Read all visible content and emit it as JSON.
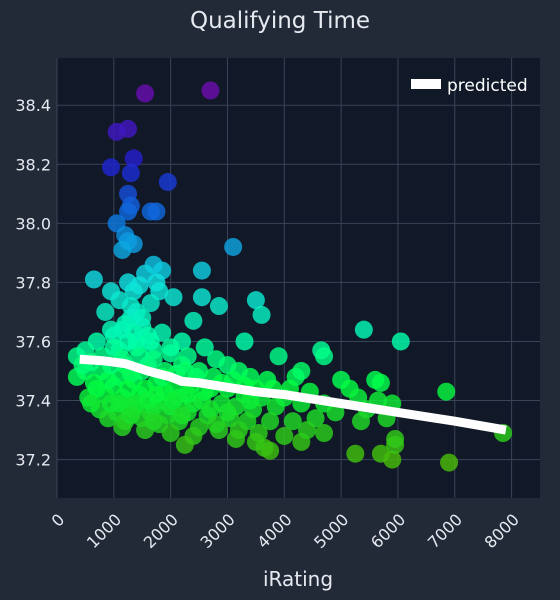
{
  "chart_data": {
    "type": "scatter",
    "title": "Qualifying Time",
    "xlabel": "iRating",
    "ylabel": "",
    "xlim": [
      0,
      8500
    ],
    "ylim": [
      37.07,
      38.56
    ],
    "x_ticks": [
      0,
      1000,
      2000,
      3000,
      4000,
      5000,
      6000,
      7000,
      8000
    ],
    "y_ticks": [
      37.2,
      37.4,
      37.6,
      37.8,
      38.0,
      38.2,
      38.4
    ],
    "y_tick_labels": [
      "37.2",
      "37.4",
      "37.6",
      "37.8",
      "38.0",
      "38.2",
      "38.4"
    ],
    "legend": {
      "placement": "top-right",
      "entries": [
        "predicted"
      ]
    },
    "grid": true,
    "colors": {
      "plot_bg": "#111827",
      "page_bg": "#222a38",
      "predicted_line": "#ffffff",
      "color_scale": [
        "#6a0dad",
        "#1f1fd0",
        "#0c7ae0",
        "#10e0e0",
        "#00ff44",
        "#20d020",
        "#55b000"
      ]
    },
    "series": [
      {
        "name": "predicted",
        "kind": "line",
        "x": [
          400,
          800,
          1200,
          1600,
          2000,
          2200,
          2500,
          3000,
          3500,
          4000,
          5000,
          6000,
          7000,
          7900
        ],
        "y": [
          37.54,
          37.535,
          37.525,
          37.5,
          37.48,
          37.465,
          37.46,
          37.445,
          37.43,
          37.42,
          37.39,
          37.36,
          37.33,
          37.3
        ]
      },
      {
        "kind": "points",
        "points": [
          [
            1550,
            38.44
          ],
          [
            2700,
            38.45
          ],
          [
            1250,
            38.32
          ],
          [
            1050,
            38.31
          ],
          [
            1350,
            38.22
          ],
          [
            950,
            38.19
          ],
          [
            1300,
            38.17
          ],
          [
            1950,
            38.14
          ],
          [
            1250,
            38.1
          ],
          [
            1300,
            38.06
          ],
          [
            1250,
            38.04
          ],
          [
            1650,
            38.04
          ],
          [
            1750,
            38.04
          ],
          [
            1050,
            38.0
          ],
          [
            1200,
            37.96
          ],
          [
            1250,
            37.94
          ],
          [
            1350,
            37.93
          ],
          [
            3100,
            37.92
          ],
          [
            1150,
            37.91
          ],
          [
            1700,
            37.86
          ],
          [
            2550,
            37.84
          ],
          [
            1550,
            37.83
          ],
          [
            1850,
            37.84
          ],
          [
            650,
            37.81
          ],
          [
            1750,
            37.8
          ],
          [
            1250,
            37.8
          ],
          [
            1450,
            37.79
          ],
          [
            1350,
            37.77
          ],
          [
            950,
            37.77
          ],
          [
            1800,
            37.77
          ],
          [
            2050,
            37.75
          ],
          [
            2550,
            37.75
          ],
          [
            3500,
            37.74
          ],
          [
            1100,
            37.74
          ],
          [
            1650,
            37.73
          ],
          [
            2850,
            37.72
          ],
          [
            850,
            37.7
          ],
          [
            3600,
            37.69
          ],
          [
            1300,
            37.68
          ],
          [
            1400,
            37.7
          ],
          [
            2400,
            37.67
          ],
          [
            5400,
            37.64
          ],
          [
            6050,
            37.6
          ],
          [
            3300,
            37.6
          ],
          [
            700,
            37.6
          ],
          [
            1000,
            37.62
          ],
          [
            1500,
            37.65
          ],
          [
            1850,
            37.63
          ],
          [
            2200,
            37.6
          ],
          [
            2600,
            37.58
          ],
          [
            4650,
            37.57
          ],
          [
            4700,
            37.55
          ],
          [
            350,
            37.55
          ],
          [
            500,
            37.57
          ],
          [
            800,
            37.55
          ],
          [
            1100,
            37.57
          ],
          [
            1400,
            37.58
          ],
          [
            1700,
            37.57
          ],
          [
            2000,
            37.56
          ],
          [
            2300,
            37.55
          ],
          [
            2800,
            37.54
          ],
          [
            3000,
            37.52
          ],
          [
            3200,
            37.5
          ],
          [
            3900,
            37.55
          ],
          [
            500,
            37.5
          ],
          [
            800,
            37.5
          ],
          [
            1200,
            37.52
          ],
          [
            1600,
            37.52
          ],
          [
            1900,
            37.5
          ],
          [
            2100,
            37.49
          ],
          [
            2450,
            37.48
          ],
          [
            3400,
            37.48
          ],
          [
            3700,
            37.47
          ],
          [
            4200,
            37.48
          ],
          [
            4300,
            37.5
          ],
          [
            5000,
            37.47
          ],
          [
            5600,
            37.47
          ],
          [
            5700,
            37.46
          ],
          [
            350,
            37.48
          ],
          [
            650,
            37.46
          ],
          [
            1000,
            37.45
          ],
          [
            1350,
            37.47
          ],
          [
            1750,
            37.46
          ],
          [
            2050,
            37.44
          ],
          [
            2350,
            37.45
          ],
          [
            2700,
            37.44
          ],
          [
            3000,
            37.44
          ],
          [
            3300,
            37.42
          ],
          [
            3600,
            37.41
          ],
          [
            4100,
            37.44
          ],
          [
            4450,
            37.43
          ],
          [
            5150,
            37.44
          ],
          [
            5300,
            37.41
          ],
          [
            5650,
            37.4
          ],
          [
            6850,
            37.43
          ],
          [
            550,
            37.41
          ],
          [
            850,
            37.42
          ],
          [
            1150,
            37.41
          ],
          [
            1450,
            37.42
          ],
          [
            1800,
            37.4
          ],
          [
            2150,
            37.41
          ],
          [
            2550,
            37.4
          ],
          [
            2900,
            37.39
          ],
          [
            3150,
            37.38
          ],
          [
            3450,
            37.37
          ],
          [
            3850,
            37.38
          ],
          [
            4300,
            37.39
          ],
          [
            4700,
            37.39
          ],
          [
            5450,
            37.37
          ],
          [
            5900,
            37.39
          ],
          [
            750,
            37.37
          ],
          [
            1050,
            37.36
          ],
          [
            1350,
            37.37
          ],
          [
            1650,
            37.36
          ],
          [
            1950,
            37.35
          ],
          [
            2300,
            37.36
          ],
          [
            2650,
            37.35
          ],
          [
            3050,
            37.34
          ],
          [
            3350,
            37.33
          ],
          [
            3750,
            37.33
          ],
          [
            4150,
            37.33
          ],
          [
            4550,
            37.34
          ],
          [
            5350,
            37.33
          ],
          [
            5800,
            37.34
          ],
          [
            900,
            37.34
          ],
          [
            1200,
            37.33
          ],
          [
            1500,
            37.34
          ],
          [
            1800,
            37.32
          ],
          [
            2150,
            37.33
          ],
          [
            2500,
            37.31
          ],
          [
            2850,
            37.3
          ],
          [
            3200,
            37.3
          ],
          [
            3550,
            37.29
          ],
          [
            4000,
            37.28
          ],
          [
            4700,
            37.29
          ],
          [
            1150,
            37.31
          ],
          [
            1550,
            37.3
          ],
          [
            2000,
            37.29
          ],
          [
            2400,
            37.28
          ],
          [
            3150,
            37.27
          ],
          [
            3750,
            37.23
          ],
          [
            3650,
            37.24
          ],
          [
            2250,
            37.25
          ],
          [
            3500,
            37.26
          ],
          [
            4300,
            37.26
          ],
          [
            5250,
            37.22
          ],
          [
            5700,
            37.22
          ],
          [
            5900,
            37.2
          ],
          [
            5950,
            37.25
          ],
          [
            5950,
            37.27
          ],
          [
            6900,
            37.19
          ],
          [
            7850,
            37.29
          ],
          [
            1300,
            37.72
          ],
          [
            1200,
            37.66
          ],
          [
            1600,
            37.62
          ],
          [
            1400,
            37.6
          ],
          [
            1000,
            37.58
          ],
          [
            1700,
            37.54
          ],
          [
            1500,
            37.5
          ],
          [
            1300,
            37.49
          ],
          [
            1100,
            37.48
          ],
          [
            900,
            37.47
          ],
          [
            1250,
            37.44
          ],
          [
            1550,
            37.44
          ],
          [
            1900,
            37.43
          ],
          [
            1400,
            37.39
          ],
          [
            1700,
            37.38
          ],
          [
            2000,
            37.38
          ],
          [
            2400,
            37.39
          ],
          [
            2700,
            37.37
          ],
          [
            1250,
            37.38
          ],
          [
            1600,
            37.4
          ],
          [
            1850,
            37.48
          ],
          [
            2200,
            37.52
          ],
          [
            2500,
            37.5
          ],
          [
            2750,
            37.48
          ],
          [
            950,
            37.52
          ],
          [
            600,
            37.53
          ],
          [
            450,
            37.52
          ],
          [
            1150,
            37.54
          ],
          [
            1450,
            37.55
          ],
          [
            1350,
            37.63
          ],
          [
            1250,
            37.6
          ],
          [
            1500,
            37.68
          ],
          [
            1150,
            37.64
          ],
          [
            950,
            37.64
          ],
          [
            1650,
            37.6
          ],
          [
            2000,
            37.58
          ],
          [
            2250,
            37.5
          ],
          [
            2900,
            37.46
          ],
          [
            3100,
            37.47
          ],
          [
            3300,
            37.45
          ],
          [
            2600,
            37.43
          ],
          [
            2300,
            37.42
          ],
          [
            2050,
            37.4
          ],
          [
            1750,
            37.42
          ],
          [
            1100,
            37.39
          ],
          [
            700,
            37.44
          ],
          [
            600,
            37.39
          ],
          [
            950,
            37.39
          ],
          [
            3500,
            37.44
          ],
          [
            3800,
            37.44
          ],
          [
            4000,
            37.41
          ],
          [
            2800,
            37.32
          ],
          [
            3000,
            37.36
          ],
          [
            3400,
            37.4
          ],
          [
            2200,
            37.35
          ],
          [
            1700,
            37.33
          ],
          [
            1300,
            37.35
          ],
          [
            4400,
            37.3
          ],
          [
            4900,
            37.36
          ]
        ]
      }
    ]
  }
}
